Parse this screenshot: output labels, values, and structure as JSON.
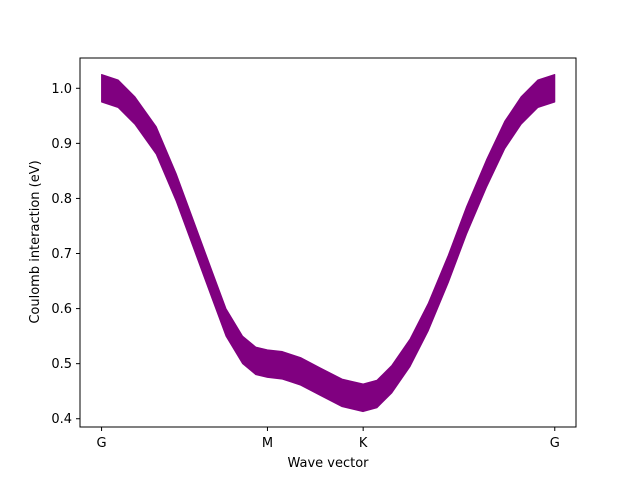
{
  "chart_data": {
    "type": "line",
    "title": "",
    "xlabel": "Wave vector",
    "ylabel": "Coulomb interaction (eV)",
    "x_ticks": [
      {
        "label": "G",
        "x": 0.0
      },
      {
        "label": "M",
        "x": 1.0
      },
      {
        "label": "K",
        "x": 1.577
      },
      {
        "label": "G",
        "x": 2.732
      }
    ],
    "xlim": [
      -0.13,
      2.86
    ],
    "ylim": [
      0.385,
      1.055
    ],
    "y_ticks": [
      0.4,
      0.5,
      0.6,
      0.7,
      0.8,
      0.9,
      1.0
    ],
    "grid": false,
    "legend": "none",
    "series": [
      {
        "color": "#800080",
        "band_width": 0.05,
        "points": [
          {
            "x": 0.0,
            "y": 1.0
          },
          {
            "x": 0.1,
            "y": 0.99
          },
          {
            "x": 0.2,
            "y": 0.96
          },
          {
            "x": 0.33,
            "y": 0.905
          },
          {
            "x": 0.45,
            "y": 0.82
          },
          {
            "x": 0.56,
            "y": 0.73
          },
          {
            "x": 0.67,
            "y": 0.64
          },
          {
            "x": 0.75,
            "y": 0.575
          },
          {
            "x": 0.85,
            "y": 0.525
          },
          {
            "x": 0.93,
            "y": 0.505
          },
          {
            "x": 1.0,
            "y": 0.5
          },
          {
            "x": 1.09,
            "y": 0.497
          },
          {
            "x": 1.2,
            "y": 0.486
          },
          {
            "x": 1.32,
            "y": 0.467
          },
          {
            "x": 1.45,
            "y": 0.447
          },
          {
            "x": 1.577,
            "y": 0.438
          },
          {
            "x": 1.66,
            "y": 0.445
          },
          {
            "x": 1.75,
            "y": 0.472
          },
          {
            "x": 1.86,
            "y": 0.52
          },
          {
            "x": 1.97,
            "y": 0.585
          },
          {
            "x": 2.09,
            "y": 0.672
          },
          {
            "x": 2.2,
            "y": 0.76
          },
          {
            "x": 2.32,
            "y": 0.845
          },
          {
            "x": 2.43,
            "y": 0.915
          },
          {
            "x": 2.53,
            "y": 0.96
          },
          {
            "x": 2.63,
            "y": 0.99
          },
          {
            "x": 2.732,
            "y": 1.0
          }
        ]
      }
    ]
  }
}
